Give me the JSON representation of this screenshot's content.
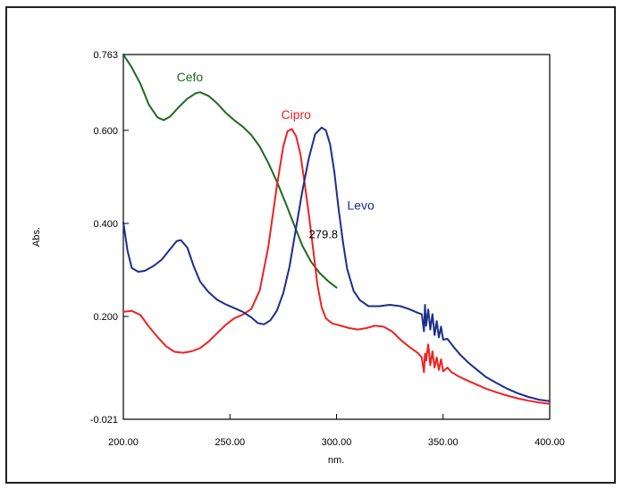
{
  "chart_data": {
    "type": "line",
    "title": "",
    "xlabel": "nm.",
    "ylabel": "Abs.",
    "xlim": [
      200,
      400
    ],
    "ylim": [
      -0.021,
      0.763
    ],
    "grid": false,
    "x_ticks": [
      {
        "value": 200,
        "label": "200.00"
      },
      {
        "value": 250,
        "label": "250.00"
      },
      {
        "value": 300,
        "label": "300.00"
      },
      {
        "value": 350,
        "label": "350.00"
      },
      {
        "value": 400,
        "label": "400.00"
      }
    ],
    "y_ticks": [
      {
        "value": -0.021,
        "label": "-0.021"
      },
      {
        "value": 0.2,
        "label": "0.200"
      },
      {
        "value": 0.4,
        "label": "0.400"
      },
      {
        "value": 0.6,
        "label": "0.600"
      },
      {
        "value": 0.763,
        "label": "0.763"
      }
    ],
    "series": [
      {
        "name": "Cefo",
        "color": "#1e6b1e",
        "label_at": [
          225,
          0.705
        ],
        "points": [
          [
            200,
            0.763
          ],
          [
            204,
            0.735
          ],
          [
            208,
            0.7
          ],
          [
            212,
            0.655
          ],
          [
            216,
            0.628
          ],
          [
            219,
            0.622
          ],
          [
            222,
            0.63
          ],
          [
            226,
            0.65
          ],
          [
            230,
            0.668
          ],
          [
            234,
            0.68
          ],
          [
            236,
            0.682
          ],
          [
            240,
            0.674
          ],
          [
            244,
            0.658
          ],
          [
            248,
            0.638
          ],
          [
            252,
            0.622
          ],
          [
            256,
            0.608
          ],
          [
            260,
            0.59
          ],
          [
            264,
            0.565
          ],
          [
            268,
            0.53
          ],
          [
            272,
            0.49
          ],
          [
            276,
            0.445
          ],
          [
            280,
            0.398
          ],
          [
            284,
            0.352
          ],
          [
            288,
            0.318
          ],
          [
            292,
            0.294
          ],
          [
            296,
            0.276
          ],
          [
            300,
            0.262
          ]
        ]
      },
      {
        "name": "Cipro",
        "color": "#ee2222",
        "label_at": [
          274,
          0.625
        ],
        "points": [
          [
            200,
            0.21
          ],
          [
            204,
            0.212
          ],
          [
            208,
            0.203
          ],
          [
            212,
            0.178
          ],
          [
            216,
            0.156
          ],
          [
            220,
            0.136
          ],
          [
            224,
            0.124
          ],
          [
            228,
            0.122
          ],
          [
            232,
            0.125
          ],
          [
            236,
            0.132
          ],
          [
            240,
            0.146
          ],
          [
            244,
            0.164
          ],
          [
            248,
            0.182
          ],
          [
            252,
            0.196
          ],
          [
            256,
            0.204
          ],
          [
            260,
            0.216
          ],
          [
            264,
            0.256
          ],
          [
            268,
            0.35
          ],
          [
            272,
            0.48
          ],
          [
            275,
            0.565
          ],
          [
            277,
            0.598
          ],
          [
            279,
            0.603
          ],
          [
            281,
            0.588
          ],
          [
            283,
            0.55
          ],
          [
            285,
            0.488
          ],
          [
            287,
            0.42
          ],
          [
            289,
            0.345
          ],
          [
            291,
            0.27
          ],
          [
            293,
            0.22
          ],
          [
            295,
            0.196
          ],
          [
            298,
            0.185
          ],
          [
            302,
            0.18
          ],
          [
            306,
            0.175
          ],
          [
            310,
            0.172
          ],
          [
            314,
            0.175
          ],
          [
            318,
            0.18
          ],
          [
            322,
            0.178
          ],
          [
            326,
            0.168
          ],
          [
            330,
            0.15
          ],
          [
            334,
            0.135
          ],
          [
            338,
            0.122
          ],
          [
            340,
            0.112
          ],
          [
            341,
            0.08
          ],
          [
            341.5,
            0.12
          ],
          [
            342,
            0.105
          ],
          [
            343,
            0.14
          ],
          [
            344,
            0.095
          ],
          [
            345,
            0.125
          ],
          [
            346,
            0.09
          ],
          [
            347,
            0.112
          ],
          [
            348,
            0.085
          ],
          [
            349,
            0.108
          ],
          [
            350,
            0.082
          ],
          [
            352,
            0.09
          ],
          [
            354,
            0.08
          ],
          [
            357,
            0.072
          ],
          [
            360,
            0.065
          ],
          [
            365,
            0.055
          ],
          [
            370,
            0.045
          ],
          [
            375,
            0.037
          ],
          [
            380,
            0.03
          ],
          [
            385,
            0.024
          ],
          [
            390,
            0.019
          ],
          [
            395,
            0.015
          ],
          [
            400,
            0.012
          ]
        ]
      },
      {
        "name": "Levo",
        "color": "#1c2e8c",
        "label_at": [
          305,
          0.43
        ],
        "points": [
          [
            200,
            0.402
          ],
          [
            202,
            0.34
          ],
          [
            204,
            0.304
          ],
          [
            207,
            0.296
          ],
          [
            210,
            0.298
          ],
          [
            214,
            0.308
          ],
          [
            218,
            0.322
          ],
          [
            222,
            0.345
          ],
          [
            225,
            0.362
          ],
          [
            227,
            0.364
          ],
          [
            230,
            0.348
          ],
          [
            233,
            0.308
          ],
          [
            236,
            0.275
          ],
          [
            240,
            0.252
          ],
          [
            244,
            0.236
          ],
          [
            248,
            0.226
          ],
          [
            252,
            0.218
          ],
          [
            256,
            0.21
          ],
          [
            260,
            0.198
          ],
          [
            263,
            0.186
          ],
          [
            266,
            0.183
          ],
          [
            269,
            0.192
          ],
          [
            272,
            0.212
          ],
          [
            275,
            0.25
          ],
          [
            278,
            0.308
          ],
          [
            281,
            0.39
          ],
          [
            284,
            0.47
          ],
          [
            287,
            0.54
          ],
          [
            290,
            0.592
          ],
          [
            293,
            0.606
          ],
          [
            295,
            0.6
          ],
          [
            297,
            0.57
          ],
          [
            299,
            0.51
          ],
          [
            301,
            0.43
          ],
          [
            303,
            0.36
          ],
          [
            305,
            0.302
          ],
          [
            308,
            0.255
          ],
          [
            311,
            0.235
          ],
          [
            315,
            0.222
          ],
          [
            320,
            0.222
          ],
          [
            325,
            0.225
          ],
          [
            330,
            0.222
          ],
          [
            334,
            0.216
          ],
          [
            338,
            0.208
          ],
          [
            340,
            0.205
          ],
          [
            341,
            0.168
          ],
          [
            341.5,
            0.225
          ],
          [
            342,
            0.18
          ],
          [
            343,
            0.215
          ],
          [
            344,
            0.172
          ],
          [
            345,
            0.205
          ],
          [
            346,
            0.16
          ],
          [
            347,
            0.19
          ],
          [
            348,
            0.155
          ],
          [
            349,
            0.178
          ],
          [
            350,
            0.15
          ],
          [
            352,
            0.152
          ],
          [
            355,
            0.134
          ],
          [
            358,
            0.118
          ],
          [
            362,
            0.1
          ],
          [
            366,
            0.085
          ],
          [
            370,
            0.07
          ],
          [
            375,
            0.057
          ],
          [
            380,
            0.045
          ],
          [
            385,
            0.035
          ],
          [
            390,
            0.027
          ],
          [
            395,
            0.021
          ],
          [
            400,
            0.018
          ]
        ]
      }
    ],
    "annotations": [
      {
        "text": "279.8",
        "x": 287,
        "y": 0.368
      }
    ]
  }
}
